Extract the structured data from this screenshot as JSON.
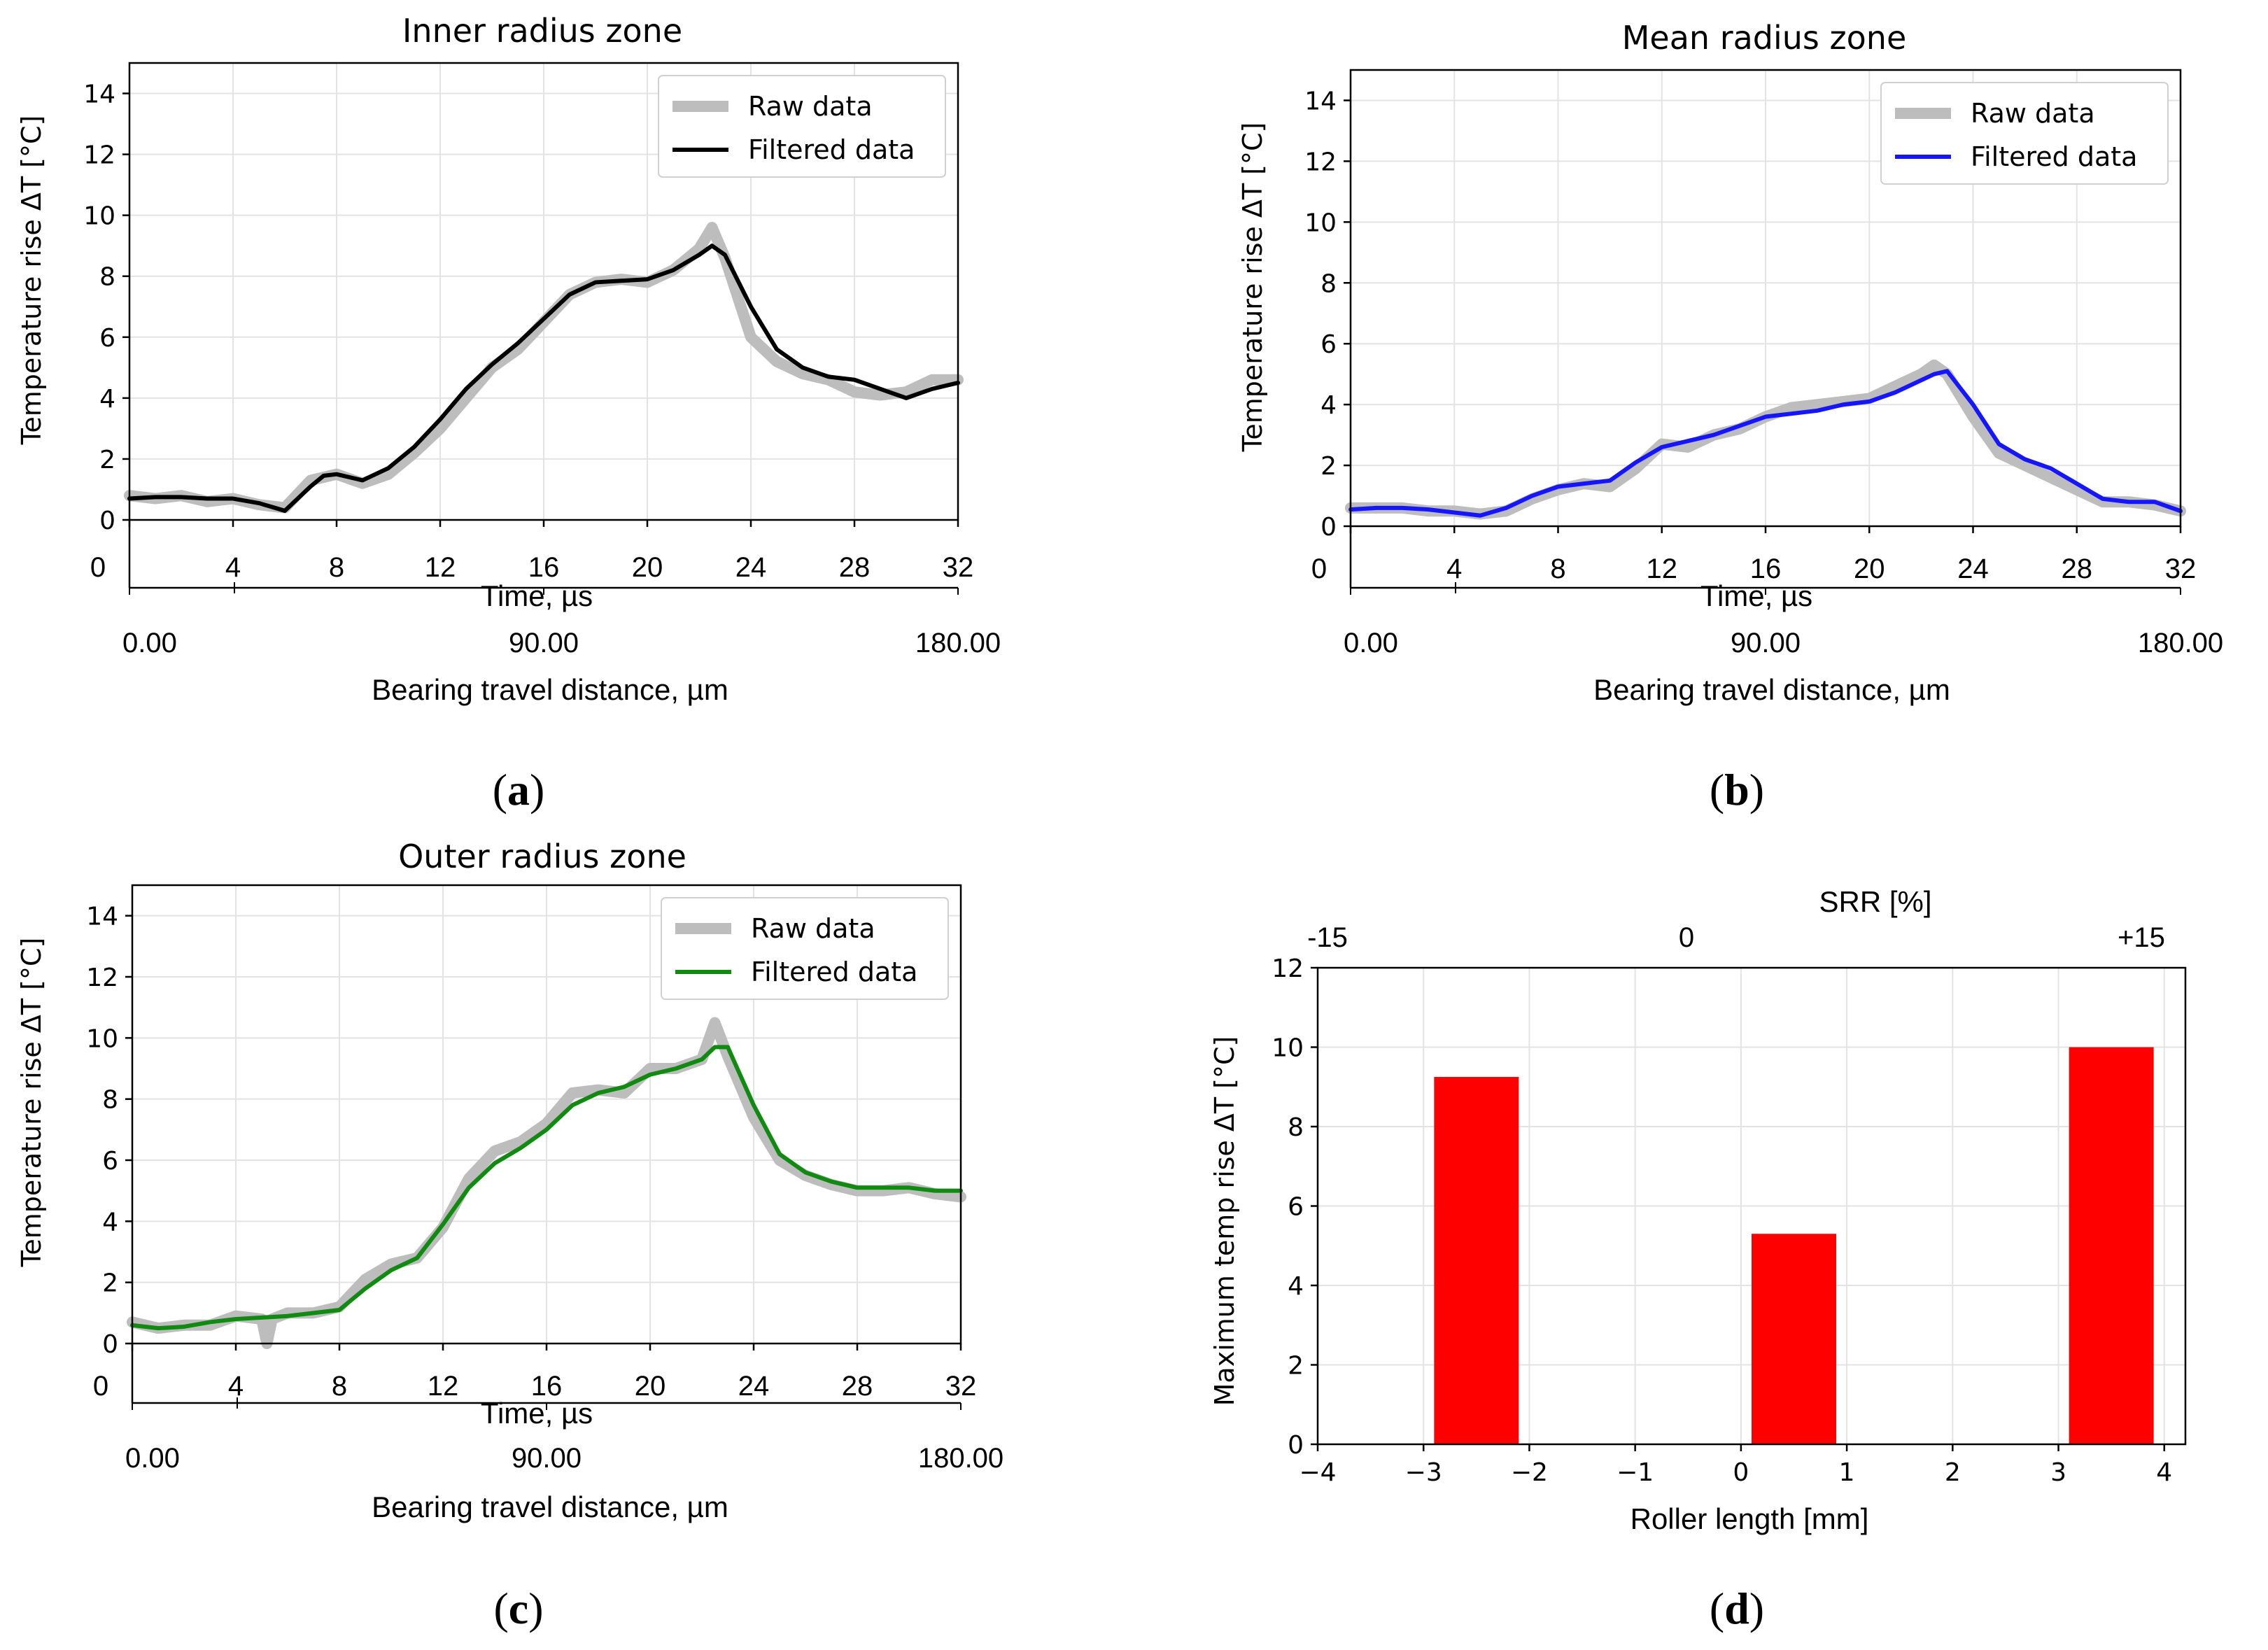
{
  "chart_data": [
    {
      "panel": "(a)",
      "caption_letter": "a",
      "type": "line",
      "title": "Inner radius zone",
      "xlabel": "Time, µs",
      "ylabel": "Temperature rise ΔT [°C]",
      "secondary_xlabel": "Bearing travel distance, µm",
      "xlim": [
        0,
        32
      ],
      "ylim": [
        0,
        15
      ],
      "xticks": [
        0,
        4,
        8,
        12,
        16,
        20,
        24,
        28,
        32
      ],
      "yticks": [
        0,
        2,
        4,
        6,
        8,
        10,
        12,
        14
      ],
      "secondary_xticks": [
        "0.00",
        "90.00",
        "180.00"
      ],
      "legend_position": "top-right",
      "grid": true,
      "colors": {
        "raw": "#bdbdbd",
        "filtered": "#000000"
      },
      "series": [
        {
          "name": "Raw data",
          "x": [
            0,
            1,
            2,
            3,
            4,
            5,
            6,
            7,
            8,
            9,
            10,
            11,
            12,
            13,
            14,
            15,
            16,
            17,
            18,
            19,
            20,
            21,
            22,
            22.5,
            23,
            24,
            25,
            26,
            27,
            28,
            29,
            30,
            31,
            32
          ],
          "values": [
            0.8,
            0.7,
            0.8,
            0.6,
            0.7,
            0.5,
            0.4,
            1.3,
            1.5,
            1.2,
            1.5,
            2.2,
            3.0,
            4.0,
            5.0,
            5.6,
            6.5,
            7.4,
            7.8,
            7.9,
            7.8,
            8.2,
            8.9,
            9.6,
            8.6,
            6.0,
            5.2,
            4.8,
            4.6,
            4.2,
            4.1,
            4.2,
            4.6,
            4.6
          ]
        },
        {
          "name": "Filtered data",
          "x": [
            0,
            1,
            2,
            3,
            4,
            5,
            6,
            7,
            7.5,
            8,
            9,
            10,
            11,
            12,
            13,
            14,
            15,
            16,
            17,
            18,
            19,
            20,
            21,
            22,
            22.5,
            23,
            24,
            25,
            26,
            27,
            28,
            29,
            30,
            31,
            32
          ],
          "values": [
            0.7,
            0.75,
            0.75,
            0.7,
            0.7,
            0.55,
            0.3,
            1.1,
            1.45,
            1.5,
            1.3,
            1.7,
            2.4,
            3.3,
            4.3,
            5.1,
            5.8,
            6.6,
            7.4,
            7.8,
            7.85,
            7.9,
            8.2,
            8.7,
            9.0,
            8.7,
            7.0,
            5.6,
            5.0,
            4.7,
            4.6,
            4.3,
            4.0,
            4.3,
            4.5
          ]
        }
      ]
    },
    {
      "panel": "(b)",
      "caption_letter": "b",
      "type": "line",
      "title": "Mean radius zone",
      "xlabel": "Time, µs",
      "ylabel": "Temperature rise ΔT [°C]",
      "secondary_xlabel": "Bearing travel distance, µm",
      "xlim": [
        0,
        32
      ],
      "ylim": [
        0,
        15
      ],
      "xticks": [
        0,
        4,
        8,
        12,
        16,
        20,
        24,
        28,
        32
      ],
      "yticks": [
        0,
        2,
        4,
        6,
        8,
        10,
        12,
        14
      ],
      "secondary_xticks": [
        "0.00",
        "90.00",
        "180.00"
      ],
      "legend_position": "top-right",
      "grid": true,
      "colors": {
        "raw": "#bdbdbd",
        "filtered": "#1515ff"
      },
      "series": [
        {
          "name": "Raw data",
          "x": [
            0,
            1,
            2,
            3,
            4,
            5,
            6,
            7,
            8,
            9,
            10,
            11,
            12,
            13,
            14,
            15,
            16,
            17,
            18,
            19,
            20,
            21,
            22,
            22.5,
            23,
            24,
            25,
            26,
            27,
            28,
            29,
            30,
            31,
            32
          ],
          "values": [
            0.6,
            0.6,
            0.6,
            0.5,
            0.5,
            0.4,
            0.5,
            0.9,
            1.2,
            1.4,
            1.3,
            1.9,
            2.7,
            2.6,
            3.0,
            3.2,
            3.6,
            3.9,
            4.0,
            4.1,
            4.2,
            4.6,
            5.0,
            5.3,
            5.0,
            3.6,
            2.4,
            2.0,
            1.6,
            1.2,
            0.8,
            0.8,
            0.7,
            0.5
          ]
        },
        {
          "name": "Filtered data",
          "x": [
            0,
            1,
            2,
            3,
            4,
            5,
            6,
            7,
            8,
            9,
            10,
            11,
            12,
            13,
            14,
            15,
            16,
            17,
            18,
            19,
            20,
            21,
            22,
            22.5,
            23,
            24,
            25,
            26,
            27,
            28,
            29,
            30,
            31,
            32
          ],
          "values": [
            0.55,
            0.6,
            0.6,
            0.55,
            0.45,
            0.35,
            0.6,
            1.0,
            1.3,
            1.4,
            1.5,
            2.1,
            2.6,
            2.8,
            3.0,
            3.3,
            3.6,
            3.7,
            3.8,
            4.0,
            4.1,
            4.4,
            4.8,
            5.0,
            5.1,
            4.0,
            2.7,
            2.2,
            1.9,
            1.4,
            0.9,
            0.8,
            0.8,
            0.5
          ]
        }
      ]
    },
    {
      "panel": "(c)",
      "caption_letter": "c",
      "type": "line",
      "title": "Outer radius zone",
      "xlabel": "Time, µs",
      "ylabel": "Temperature rise ΔT [°C]",
      "secondary_xlabel": "Bearing travel distance, µm",
      "xlim": [
        0,
        32
      ],
      "ylim": [
        0,
        15
      ],
      "xticks": [
        0,
        4,
        8,
        12,
        16,
        20,
        24,
        28,
        32
      ],
      "yticks": [
        0,
        2,
        4,
        6,
        8,
        10,
        12,
        14
      ],
      "secondary_xticks": [
        "0.00",
        "90.00",
        "180.00"
      ],
      "legend_position": "top-right",
      "grid": true,
      "colors": {
        "raw": "#bdbdbd",
        "filtered": "#108a10"
      },
      "series": [
        {
          "name": "Raw data",
          "x": [
            0,
            1,
            2,
            3,
            4,
            5,
            5.2,
            5.4,
            6,
            7,
            8,
            9,
            10,
            11,
            12,
            13,
            14,
            15,
            16,
            17,
            18,
            19,
            20,
            21,
            22,
            22.5,
            23,
            24,
            25,
            26,
            27,
            28,
            29,
            30,
            31,
            32
          ],
          "values": [
            0.7,
            0.5,
            0.6,
            0.6,
            0.9,
            0.8,
            0.0,
            0.8,
            1.0,
            1.0,
            1.2,
            2.1,
            2.6,
            2.8,
            3.8,
            5.4,
            6.3,
            6.6,
            7.2,
            8.2,
            8.3,
            8.2,
            9.0,
            9.0,
            9.3,
            10.5,
            9.4,
            7.4,
            6.0,
            5.5,
            5.2,
            5.0,
            5.0,
            5.1,
            4.9,
            4.8
          ]
        },
        {
          "name": "Filtered data",
          "x": [
            0,
            1,
            2,
            3,
            4,
            5,
            6,
            7,
            8,
            9,
            10,
            11,
            12,
            13,
            14,
            15,
            16,
            17,
            18,
            19,
            20,
            21,
            22,
            22.5,
            23,
            24,
            25,
            26,
            27,
            28,
            29,
            30,
            31,
            32
          ],
          "values": [
            0.6,
            0.5,
            0.55,
            0.7,
            0.8,
            0.85,
            0.9,
            1.0,
            1.1,
            1.8,
            2.4,
            2.8,
            3.9,
            5.1,
            5.9,
            6.4,
            7.0,
            7.8,
            8.2,
            8.4,
            8.8,
            9.0,
            9.3,
            9.7,
            9.7,
            7.8,
            6.2,
            5.6,
            5.3,
            5.1,
            5.1,
            5.1,
            5.0,
            5.0
          ]
        }
      ]
    },
    {
      "panel": "(d)",
      "caption_letter": "d",
      "type": "bar",
      "xlabel": "Roller length [mm]",
      "ylabel": "Maximum temp rise ΔT [°C]",
      "secondary_xlabel": "SRR [%]",
      "secondary_xticks": [
        "-15",
        "0",
        "+15"
      ],
      "xlim": [
        -4,
        4.2
      ],
      "ylim": [
        0,
        12
      ],
      "xticks": [
        -4,
        -3,
        -2,
        -1,
        0,
        1,
        2,
        3,
        4
      ],
      "xtick_labels": [
        "−4",
        "−3",
        "−2",
        "−1",
        "0",
        "1",
        "2",
        "3",
        "4"
      ],
      "yticks": [
        0,
        2,
        4,
        6,
        8,
        10,
        12
      ],
      "grid": true,
      "colors": {
        "bar": "#ff0000"
      },
      "bars": [
        {
          "x_from": -2.9,
          "x_to": -2.1,
          "value": 9.25
        },
        {
          "x_from": 0.1,
          "x_to": 0.9,
          "value": 5.3
        },
        {
          "x_from": 3.1,
          "x_to": 3.9,
          "value": 10.0
        }
      ]
    }
  ]
}
